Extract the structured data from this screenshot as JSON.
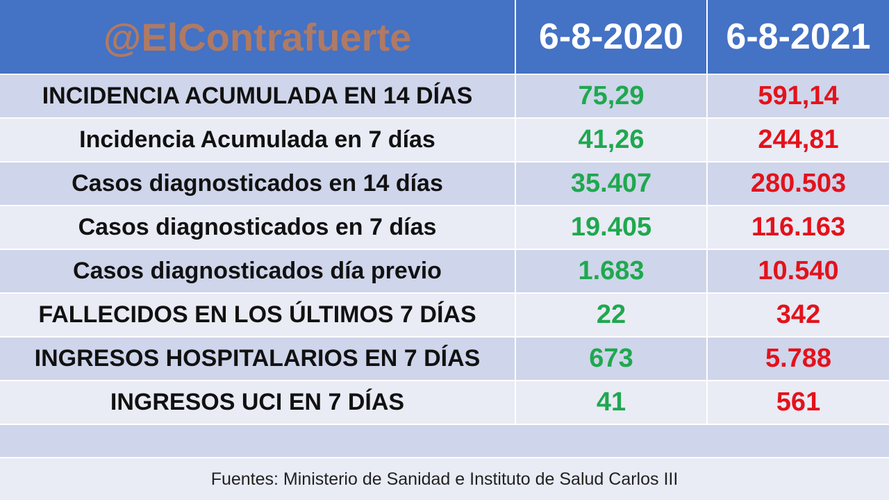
{
  "header": {
    "brand": "@ElContrafuerte",
    "col_2020": "6-8-2020",
    "col_2021": "6-8-2021"
  },
  "rows": [
    {
      "label": "INCIDENCIA ACUMULADA EN 14 DÍAS",
      "v2020": "75,29",
      "v2021": "591,14"
    },
    {
      "label": "Incidencia Acumulada en 7 días",
      "v2020": "41,26",
      "v2021": "244,81"
    },
    {
      "label": "Casos diagnosticados en 14 días",
      "v2020": "35.407",
      "v2021": "280.503"
    },
    {
      "label": "Casos diagnosticados en 7 días",
      "v2020": "19.405",
      "v2021": "116.163"
    },
    {
      "label": "Casos diagnosticados día previo",
      "v2020": "1.683",
      "v2021": "10.540"
    },
    {
      "label": "FALLECIDOS EN LOS ÚLTIMOS 7 DÍAS",
      "v2020": "22",
      "v2021": "342"
    },
    {
      "label": "INGRESOS HOSPITALARIOS EN 7 DÍAS",
      "v2020": "673",
      "v2021": "5.788"
    },
    {
      "label": "INGRESOS UCI EN 7 DÍAS",
      "v2020": "41",
      "v2021": "561"
    }
  ],
  "footer": {
    "source": "Fuentes: Ministerio de Sanidad e Instituto de Salud Carlos III"
  },
  "colors": {
    "header_bg": "#4472c4",
    "value_2020": "#1fa84f",
    "value_2021": "#e3121b",
    "brand": "#b07a64"
  }
}
